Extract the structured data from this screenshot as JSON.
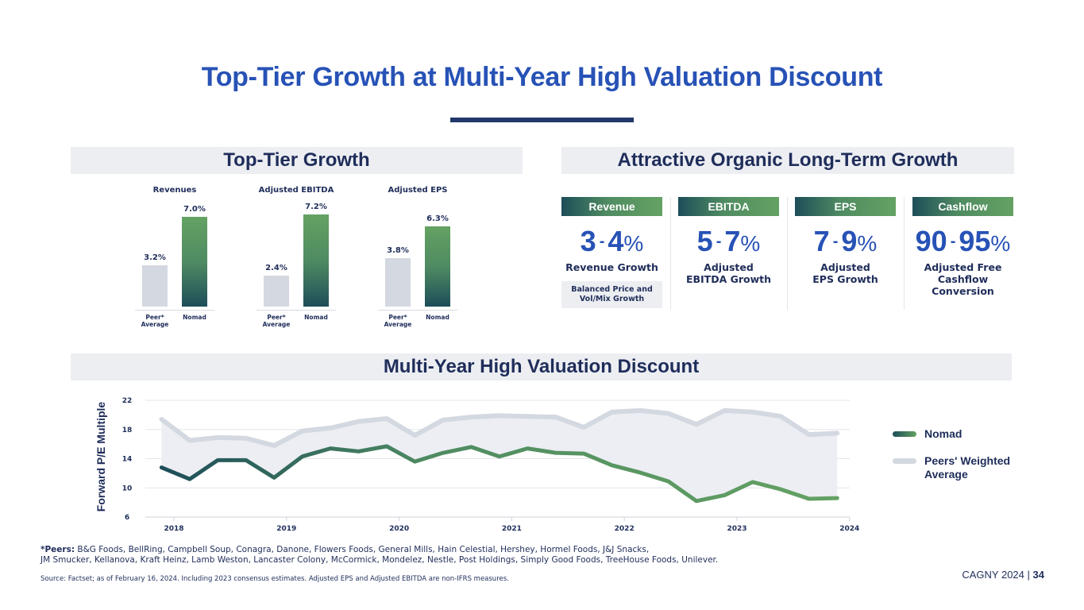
{
  "slide": {
    "title": "Top-Tier Growth at Multi-Year High Valuation Discount",
    "sections": {
      "top_tier_growth": "Top-Tier Growth",
      "organic_growth": "Attractive Organic Long-Term Growth",
      "valuation_discount": "Multi-Year High Valuation Discount"
    },
    "metrics": [
      {
        "header": "Revenue",
        "low": "3",
        "high": "4",
        "pct": "%",
        "desc": "Revenue Growth",
        "note": "Balanced Price and Vol/Mix Growth"
      },
      {
        "header": "EBITDA",
        "low": "5",
        "high": "7",
        "pct": "%",
        "desc": "Adjusted EBITDA Growth",
        "note": ""
      },
      {
        "header": "EPS",
        "low": "7",
        "high": "9",
        "pct": "%",
        "desc": "Adjusted EPS Growth",
        "note": ""
      },
      {
        "header": "Cashflow",
        "low": "90",
        "high": "95",
        "pct": "%",
        "desc": "Adjusted Free Cashflow Conversion",
        "note": ""
      }
    ],
    "dash": "-",
    "footnote": {
      "peers_label": "*Peers:",
      "peers_line1": "B&G Foods, BellRing, Campbell Soup, Conagra, Danone, Flowers Foods, General Mills, Hain Celestial, Hershey, Hormel Foods, J&J Snacks,",
      "peers_line2": "JM Smucker, Kellanova, Kraft Heinz, Lamb Weston, Lancaster Colony, McCormick, Mondelez, Nestle, Post Holdings, Simply Good Foods, TreeHouse Foods, Unilever.",
      "source": "Source: Factset; as of February 16, 2024. Including 2023 consensus estimates. Adjusted EPS and Adjusted EBITDA are non-IFRS measures."
    },
    "page_tag": {
      "event": "CAGNY 2024",
      "separator": "|",
      "page": "34"
    },
    "colors": {
      "title_blue": "#2752b6",
      "navy": "#1f2d5a",
      "green": "#64a263",
      "teal": "#1d4d59",
      "peer_grey": "#d4d8e0",
      "section_bg": "#eceef2"
    }
  },
  "chart_data": [
    {
      "type": "bar",
      "title": "Revenues",
      "categories": [
        "Peer* Average",
        "Nomad"
      ],
      "values": [
        3.2,
        7.0
      ],
      "labels": [
        "3.2%",
        "7.0%"
      ],
      "ylim": [
        0,
        8
      ]
    },
    {
      "type": "bar",
      "title": "Adjusted EBITDA",
      "categories": [
        "Peer* Average",
        "Nomad"
      ],
      "values": [
        2.4,
        7.2
      ],
      "labels": [
        "2.4%",
        "7.2%"
      ],
      "ylim": [
        0,
        8
      ]
    },
    {
      "type": "bar",
      "title": "Adjusted EPS",
      "categories": [
        "Peer* Average",
        "Nomad"
      ],
      "values": [
        3.8,
        6.3
      ],
      "labels": [
        "3.8%",
        "6.3%"
      ],
      "ylim": [
        0,
        8
      ]
    },
    {
      "type": "line",
      "title": "Multi-Year High Valuation Discount",
      "xlabel": "",
      "ylabel": "Forward P/E Multiple",
      "ylim": [
        6,
        22
      ],
      "yticks": [
        6,
        10,
        14,
        18,
        22
      ],
      "xlim": [
        2018,
        2024
      ],
      "xticks": [
        "2018",
        "2019",
        "2020",
        "2021",
        "2022",
        "2023",
        "2024"
      ],
      "grid": true,
      "legend": "right",
      "x": [
        2017.89,
        2018.14,
        2018.39,
        2018.64,
        2018.89,
        2019.14,
        2019.39,
        2019.64,
        2019.89,
        2020.14,
        2020.39,
        2020.64,
        2020.89,
        2021.14,
        2021.39,
        2021.64,
        2021.89,
        2022.14,
        2022.39,
        2022.64,
        2022.89,
        2023.14,
        2023.39,
        2023.64,
        2023.89
      ],
      "series": [
        {
          "name": "Nomad",
          "values": [
            12.8,
            11.2,
            13.8,
            13.8,
            11.4,
            14.3,
            15.4,
            15.0,
            15.7,
            13.6,
            14.8,
            15.6,
            14.3,
            15.4,
            14.8,
            14.7,
            13.1,
            12.1,
            10.9,
            8.2,
            9.0,
            10.8,
            9.8,
            8.5,
            8.6
          ]
        },
        {
          "name": "Peers' Weighted Average",
          "values": [
            19.4,
            16.5,
            16.9,
            16.8,
            15.8,
            17.8,
            18.2,
            19.1,
            19.5,
            17.2,
            19.3,
            19.7,
            19.9,
            19.8,
            19.7,
            18.3,
            20.4,
            20.6,
            20.2,
            18.7,
            20.6,
            20.4,
            19.8,
            17.3,
            17.5
          ]
        }
      ]
    }
  ]
}
